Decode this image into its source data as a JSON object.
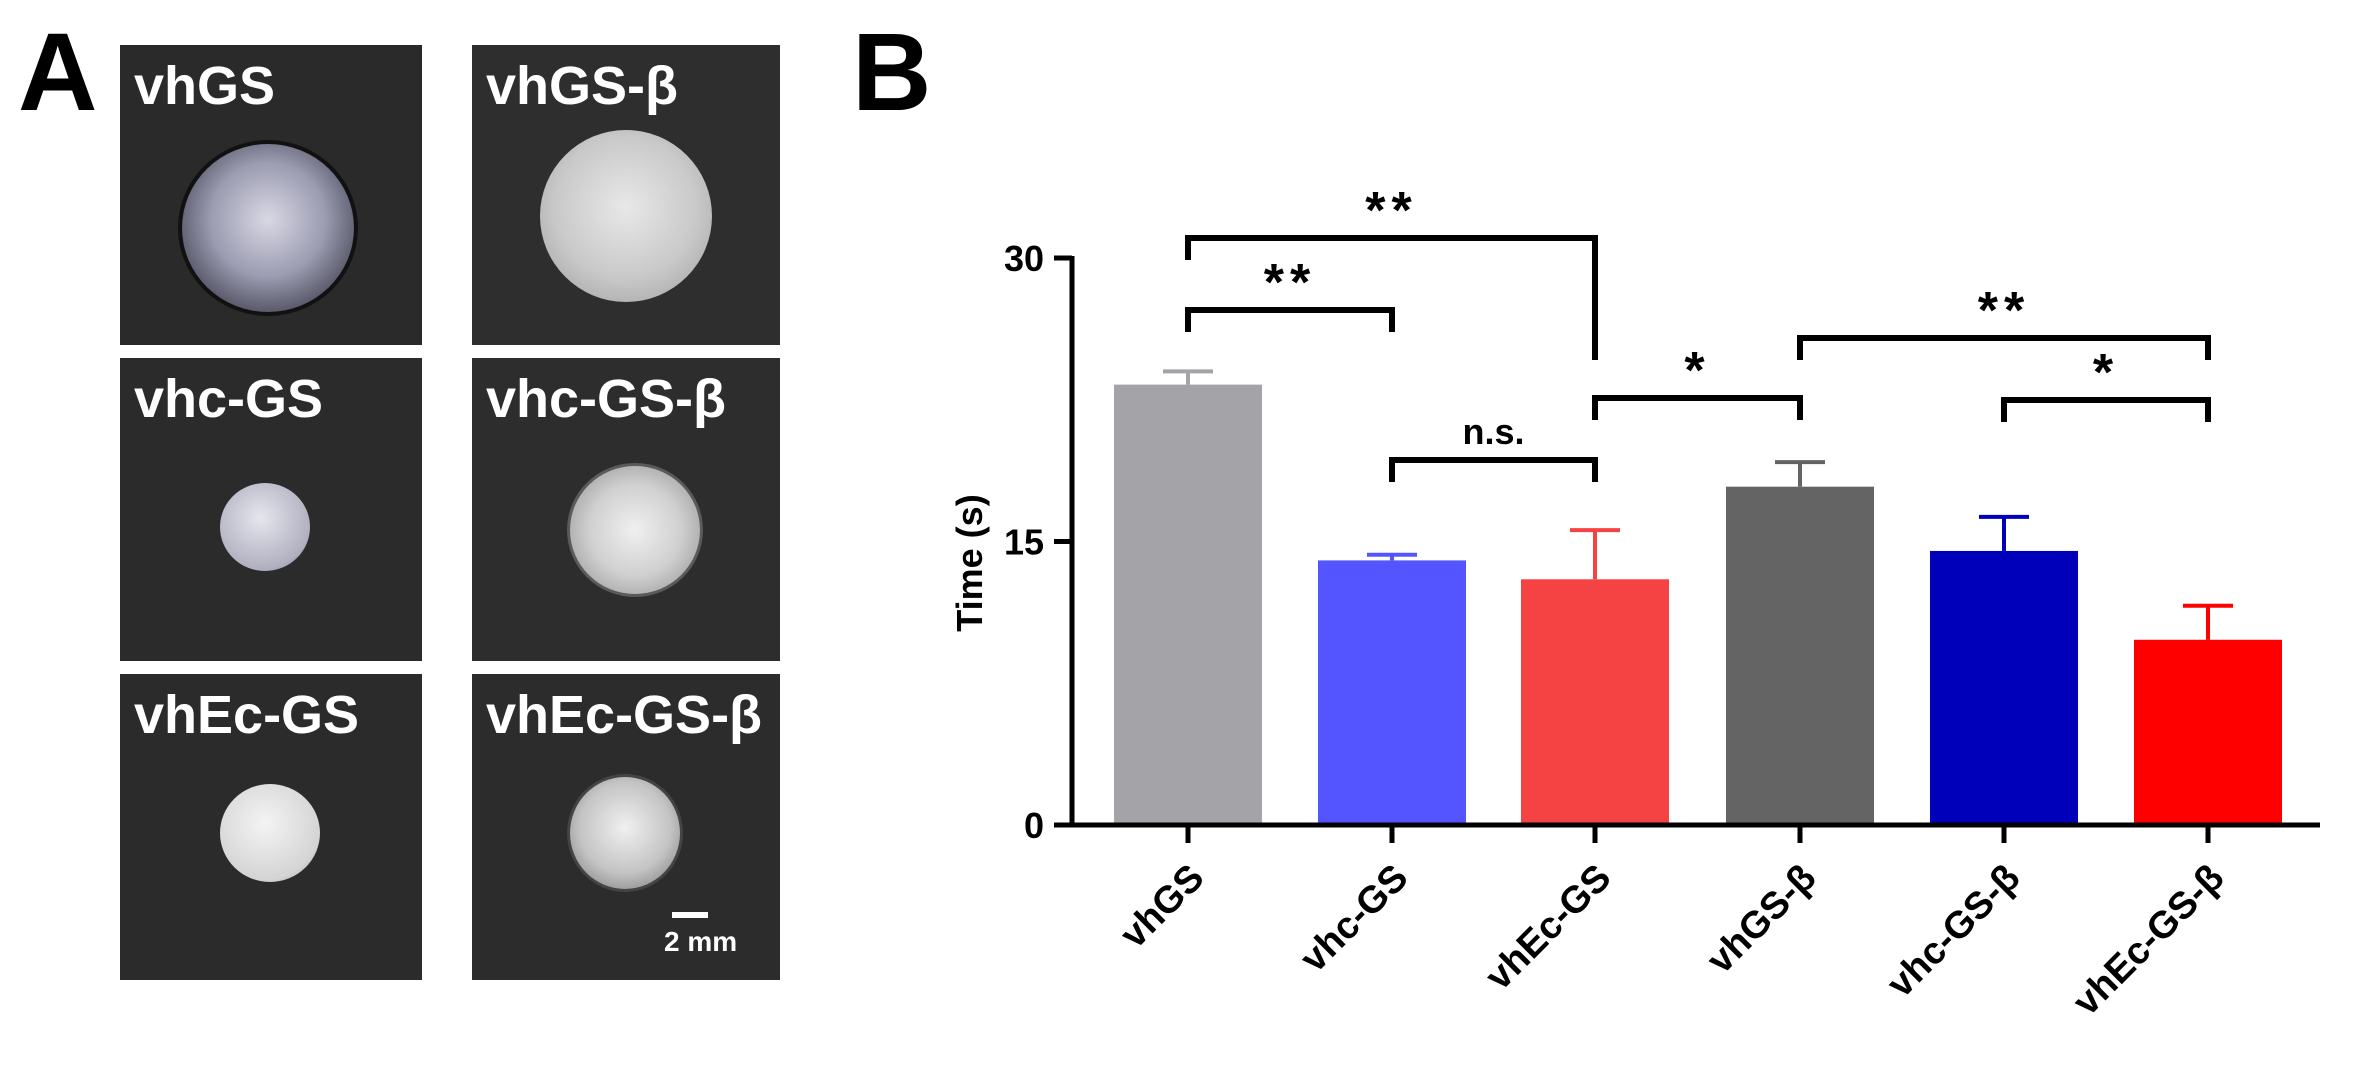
{
  "panel_a": {
    "letter": "A",
    "photos": [
      {
        "label": "vhGS"
      },
      {
        "label": "vhGS-β"
      },
      {
        "label": "vhc-GS"
      },
      {
        "label": "vhc-GS-β"
      },
      {
        "label": "vhEc-GS"
      },
      {
        "label": "vhEc-GS-β"
      }
    ],
    "scale_bar_label": "2 mm"
  },
  "panel_b": {
    "letter": "B"
  },
  "chart_data": {
    "type": "bar",
    "title": "",
    "xlabel": "",
    "ylabel": "Time (s)",
    "ylim": [
      0,
      30
    ],
    "yticks": [
      0,
      15,
      30
    ],
    "categories": [
      "vhGS",
      "vhc-GS",
      "vhEc-GS",
      "vhGS-β",
      "vhc-GS-β",
      "vhEc-GS-β"
    ],
    "values": [
      23.3,
      14.0,
      13.0,
      17.9,
      14.5,
      9.8
    ],
    "errors": [
      0.7,
      0.3,
      2.6,
      1.3,
      1.8,
      1.8
    ],
    "colors": [
      "#a3a3a8",
      "#5555ff",
      "#f54343",
      "#646464",
      "#0000bb",
      "#ff0000"
    ],
    "significance": [
      {
        "from": 0,
        "to": 2,
        "label": "**"
      },
      {
        "from": 0,
        "to": 1,
        "label": "**"
      },
      {
        "from": 1,
        "to": 2,
        "label": "n.s."
      },
      {
        "from": 2,
        "to": 3,
        "label": "*"
      },
      {
        "from": 3,
        "to": 5,
        "label": "**"
      },
      {
        "from": 4,
        "to": 5,
        "label": "*"
      }
    ]
  }
}
